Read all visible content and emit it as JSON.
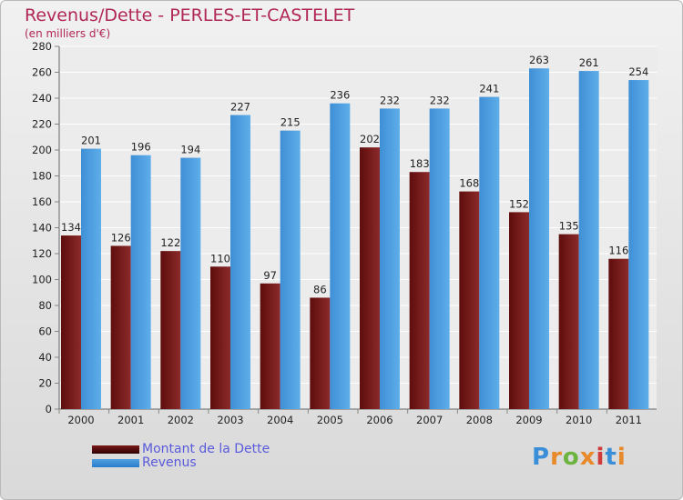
{
  "title": "Revenus/Dette - PERLES-ET-CASTELET",
  "subtitle": "(en milliers d'€)",
  "colors": {
    "dette": "#7a1818",
    "revenus": "#4f9fe0",
    "title": "#b02755",
    "legend_text": "#5a5adc"
  },
  "legend": {
    "dette_label": "Montant de la Dette",
    "revenus_label": "Revenus"
  },
  "logo": {
    "text": "Proxiti",
    "icon": "proxiti-logo"
  },
  "chart_data": {
    "type": "bar",
    "title": "Revenus/Dette - PERLES-ET-CASTELET",
    "subtitle": "(en milliers d'€)",
    "xlabel": "",
    "ylabel": "",
    "ylim": [
      0,
      280
    ],
    "yticks": [
      0,
      20,
      40,
      60,
      80,
      100,
      120,
      140,
      160,
      180,
      200,
      220,
      240,
      260,
      280
    ],
    "grid": true,
    "legend_position": "bottom-left",
    "categories": [
      "2000",
      "2001",
      "2002",
      "2003",
      "2004",
      "2005",
      "2006",
      "2007",
      "2008",
      "2009",
      "2010",
      "2011"
    ],
    "series": [
      {
        "name": "Montant de la Dette",
        "values": [
          134,
          126,
          122,
          110,
          97,
          86,
          202,
          183,
          168,
          152,
          135,
          116
        ]
      },
      {
        "name": "Revenus",
        "values": [
          201,
          196,
          194,
          227,
          215,
          236,
          232,
          232,
          241,
          263,
          261,
          254
        ]
      }
    ]
  }
}
